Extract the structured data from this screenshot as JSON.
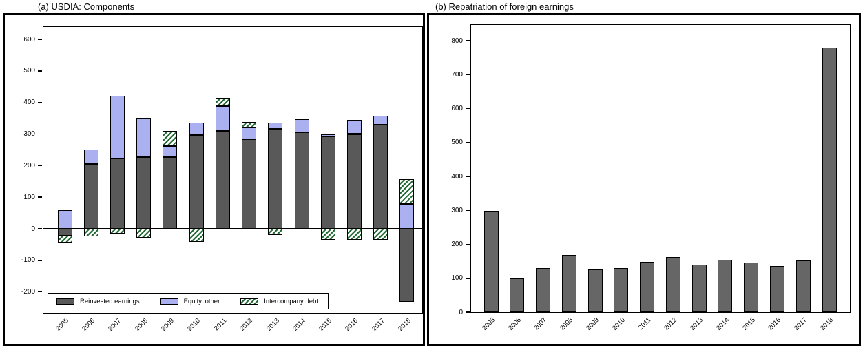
{
  "figure": {
    "background": "#ffffff",
    "frame_color": "#000000"
  },
  "chart_data": [
    {
      "type": "bar",
      "subtype": "stacked",
      "title": "(a) USDIA: Components",
      "xlabel": "",
      "ylabel": "",
      "categories": [
        "2005",
        "2006",
        "2007",
        "2008",
        "2009",
        "2010",
        "2011",
        "2012",
        "2013",
        "2014",
        "2015",
        "2016",
        "2017",
        "2018"
      ],
      "series": [
        {
          "name": "Reinvested earnings",
          "fill": "#595959",
          "values": [
            -22,
            205,
            222,
            227,
            226,
            297,
            310,
            284,
            317,
            306,
            293,
            300,
            330,
            -232
          ]
        },
        {
          "name": "Equity, other",
          "fill": "#aab0f0",
          "values": [
            60,
            47,
            199,
            124,
            36,
            40,
            78,
            36,
            18,
            42,
            6,
            44,
            28,
            78
          ]
        },
        {
          "name": "Intercompany debt",
          "fill": "#ffffff",
          "stripe": "#226b35",
          "values": [
            -21,
            -25,
            -15,
            -28,
            48,
            -42,
            27,
            18,
            -20,
            0,
            -35,
            -35,
            -35,
            80
          ]
        }
      ],
      "ylim": [
        -266,
        640
      ],
      "yticks": [
        600,
        500,
        400,
        300,
        200,
        100,
        0,
        -100,
        -200
      ],
      "grid": false,
      "legend_position": "bottom-left-inside"
    },
    {
      "type": "bar",
      "title": "(b) Repatriation of foreign earnings",
      "xlabel": "",
      "ylabel": "",
      "categories": [
        "2005",
        "2006",
        "2007",
        "2008",
        "2009",
        "2010",
        "2011",
        "2012",
        "2013",
        "2014",
        "2015",
        "2016",
        "2017",
        "2018"
      ],
      "bar_fill": "#666666",
      "values": [
        298,
        100,
        130,
        168,
        125,
        130,
        148,
        162,
        141,
        154,
        146,
        136,
        152,
        779
      ],
      "ylim": [
        0,
        847
      ],
      "yticks": [
        800,
        700,
        600,
        500,
        400,
        300,
        200,
        100,
        0
      ],
      "grid": false
    }
  ]
}
